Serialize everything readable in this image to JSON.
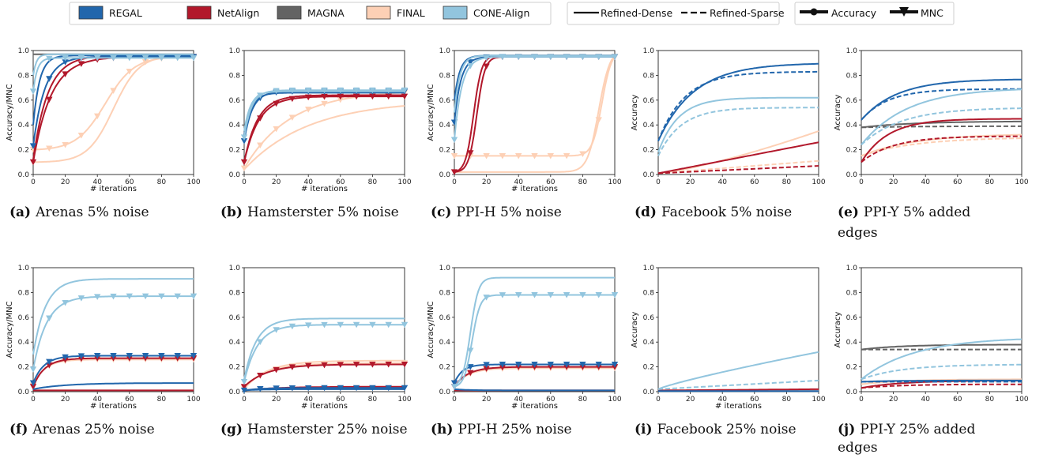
{
  "colors": {
    "REGAL": "#2166ac",
    "NetAlign": "#b2182b",
    "MAGNA": "#636363",
    "FINAL": "#fdd0b5",
    "CONE-Align": "#92c5de"
  },
  "legend": {
    "methods": [
      "REGAL",
      "NetAlign",
      "MAGNA",
      "FINAL",
      "CONE-Align"
    ],
    "styles": [
      "Refined-Dense",
      "Refined-Sparse"
    ],
    "metrics": [
      "Accuracy",
      "MNC"
    ]
  },
  "chart_data": [
    {
      "type": "line",
      "id": "a",
      "letter": "(a)",
      "caption": "Arenas 5% noise",
      "ylabel": "Accuracy/MNC",
      "xlabel": "# iterations",
      "xlim": [
        0,
        100
      ],
      "ylim": [
        0,
        1
      ],
      "xticks": [
        "0",
        "20",
        "40",
        "60",
        "80",
        "100"
      ],
      "yticks": [
        "0.0",
        "0.2",
        "0.4",
        "0.6",
        "0.8",
        "1.0"
      ],
      "series": [
        {
          "method": "REGAL",
          "style": "dense",
          "metric": "acc",
          "y0": 0.4,
          "y1": 0.96,
          "k": 0.25
        },
        {
          "method": "REGAL",
          "style": "dense",
          "metric": "mnc",
          "y0": 0.23,
          "y1": 0.95,
          "k": 0.14
        },
        {
          "method": "NetAlign",
          "style": "dense",
          "metric": "acc",
          "y0": 0.12,
          "y1": 0.96,
          "k": 0.11
        },
        {
          "method": "NetAlign",
          "style": "dense",
          "metric": "mnc",
          "y0": 0.1,
          "y1": 0.95,
          "k": 0.09
        },
        {
          "method": "MAGNA",
          "style": "dense",
          "metric": "acc",
          "y0": 0.97,
          "y1": 0.97,
          "k": 0.1
        },
        {
          "method": "FINAL",
          "style": "dense",
          "metric": "acc",
          "y0": 0.1,
          "y1": 0.96,
          "sig": [
            50,
            8
          ]
        },
        {
          "method": "FINAL",
          "style": "dense",
          "metric": "mnc",
          "y0": 0.2,
          "y1": 0.95,
          "sig": [
            45,
            9
          ]
        },
        {
          "method": "CONE-Align",
          "style": "dense",
          "metric": "acc",
          "y0": 0.8,
          "y1": 0.97,
          "k": 0.5
        },
        {
          "method": "CONE-Align",
          "style": "dense",
          "metric": "mnc",
          "y0": 0.67,
          "y1": 0.94,
          "k": 0.4
        }
      ]
    },
    {
      "type": "line",
      "id": "b",
      "letter": "(b)",
      "caption": "Hamsterster 5% noise",
      "ylabel": "",
      "xlabel": "# iterations",
      "xlim": [
        0,
        100
      ],
      "ylim": [
        0,
        1
      ],
      "xticks": [
        "0",
        "20",
        "40",
        "60",
        "80",
        "100"
      ],
      "yticks": [
        "0.0",
        "0.2",
        "0.4",
        "0.6",
        "0.8",
        "1.0"
      ],
      "series": [
        {
          "method": "REGAL",
          "style": "dense",
          "metric": "acc",
          "y0": 0.32,
          "y1": 0.66,
          "k": 0.22
        },
        {
          "method": "REGAL",
          "style": "dense",
          "metric": "mnc",
          "y0": 0.27,
          "y1": 0.67,
          "k": 0.2
        },
        {
          "method": "NetAlign",
          "style": "dense",
          "metric": "acc",
          "y0": 0.1,
          "y1": 0.64,
          "k": 0.12
        },
        {
          "method": "NetAlign",
          "style": "dense",
          "metric": "mnc",
          "y0": 0.1,
          "y1": 0.63,
          "k": 0.11
        },
        {
          "method": "FINAL",
          "style": "dense",
          "metric": "acc",
          "y0": 0.04,
          "y1": 0.6,
          "k": 0.025
        },
        {
          "method": "FINAL",
          "style": "dense",
          "metric": "mnc",
          "y0": 0.05,
          "y1": 0.68,
          "k": 0.035
        },
        {
          "method": "CONE-Align",
          "style": "dense",
          "metric": "acc",
          "y0": 0.35,
          "y1": 0.67,
          "k": 0.25
        },
        {
          "method": "CONE-Align",
          "style": "dense",
          "metric": "mnc",
          "y0": 0.3,
          "y1": 0.68,
          "k": 0.22
        }
      ]
    },
    {
      "type": "line",
      "id": "c",
      "letter": "(c)",
      "caption": "PPI-H 5% noise",
      "ylabel": "Accuracy/MNC",
      "xlabel": "# iterations",
      "xlim": [
        0,
        100
      ],
      "ylim": [
        0,
        1
      ],
      "xticks": [
        "0",
        "20",
        "40",
        "60",
        "80",
        "100"
      ],
      "yticks": [
        "0.0",
        "0.2",
        "0.4",
        "0.6",
        "0.8",
        "1.0"
      ],
      "series": [
        {
          "method": "REGAL",
          "style": "dense",
          "metric": "acc",
          "y0": 0.6,
          "y1": 0.96,
          "k": 0.3
        },
        {
          "method": "REGAL",
          "style": "dense",
          "metric": "mnc",
          "y0": 0.42,
          "y1": 0.95,
          "k": 0.25
        },
        {
          "method": "NetAlign",
          "style": "dense",
          "metric": "acc",
          "y0": 0.02,
          "y1": 0.96,
          "sig": [
            12,
            2.5
          ]
        },
        {
          "method": "NetAlign",
          "style": "dense",
          "metric": "mnc",
          "y0": 0.02,
          "y1": 0.95,
          "sig": [
            14,
            2.5
          ]
        },
        {
          "method": "FINAL",
          "style": "dense",
          "metric": "acc",
          "y0": 0.02,
          "y1": 0.96,
          "sig": [
            90,
            3.5
          ]
        },
        {
          "method": "FINAL",
          "style": "dense",
          "metric": "mnc",
          "y0": 0.15,
          "y1": 0.95,
          "sig": [
            92,
            3
          ]
        },
        {
          "method": "CONE-Align",
          "style": "dense",
          "metric": "acc",
          "y0": 0.5,
          "y1": 0.96,
          "k": 0.3
        },
        {
          "method": "CONE-Align",
          "style": "dense",
          "metric": "mnc",
          "y0": 0.28,
          "y1": 0.95,
          "k": 0.22
        }
      ]
    },
    {
      "type": "line",
      "id": "d",
      "letter": "(d)",
      "caption": "Facebook 5% noise",
      "ylabel": "Accuracy",
      "xlabel": "",
      "xlim": [
        0,
        100
      ],
      "ylim": [
        0,
        1
      ],
      "xticks": [
        "0",
        "20",
        "40",
        "60",
        "80",
        "100"
      ],
      "yticks": [
        "0.0",
        "0.2",
        "0.4",
        "0.6",
        "0.8",
        "1.0"
      ],
      "series": [
        {
          "method": "REGAL",
          "style": "dense",
          "metric": "acc",
          "y0": 0.27,
          "y1": 0.9,
          "k": 0.045
        },
        {
          "method": "REGAL",
          "style": "sparse",
          "metric": "acc",
          "y0": 0.27,
          "y1": 0.83,
          "k": 0.06
        },
        {
          "method": "NetAlign",
          "style": "dense",
          "metric": "acc",
          "y0": 0.01,
          "y1": 0.26,
          "lin": 1
        },
        {
          "method": "NetAlign",
          "style": "sparse",
          "metric": "acc",
          "y0": 0.01,
          "y1": 0.07,
          "lin": 1
        },
        {
          "method": "FINAL",
          "style": "dense",
          "metric": "acc",
          "y0": 0.01,
          "y1": 0.35,
          "lin": 1.3
        },
        {
          "method": "FINAL",
          "style": "sparse",
          "metric": "acc",
          "y0": 0.01,
          "y1": 0.11,
          "lin": 1
        },
        {
          "method": "CONE-Align",
          "style": "dense",
          "metric": "acc",
          "y0": 0.18,
          "y1": 0.62,
          "k": 0.08
        },
        {
          "method": "CONE-Align",
          "style": "sparse",
          "metric": "acc",
          "y0": 0.15,
          "y1": 0.54,
          "k": 0.07
        }
      ]
    },
    {
      "type": "line",
      "id": "e",
      "letter": "(e)",
      "caption": "PPI-Y 5% added edges",
      "ylabel": "Accuracy",
      "xlabel": "",
      "xlim": [
        0,
        100
      ],
      "ylim": [
        0,
        1
      ],
      "xticks": [
        "0",
        "20",
        "40",
        "60",
        "80",
        "100"
      ],
      "yticks": [
        "0.0",
        "0.2",
        "0.4",
        "0.6",
        "0.8",
        "1.0"
      ],
      "series": [
        {
          "method": "REGAL",
          "style": "dense",
          "metric": "acc",
          "y0": 0.44,
          "y1": 0.77,
          "k": 0.045
        },
        {
          "method": "REGAL",
          "style": "sparse",
          "metric": "acc",
          "y0": 0.44,
          "y1": 0.69,
          "k": 0.06
        },
        {
          "method": "NetAlign",
          "style": "dense",
          "metric": "acc",
          "y0": 0.1,
          "y1": 0.45,
          "k": 0.06
        },
        {
          "method": "NetAlign",
          "style": "sparse",
          "metric": "acc",
          "y0": 0.1,
          "y1": 0.31,
          "k": 0.05
        },
        {
          "method": "MAGNA",
          "style": "dense",
          "metric": "acc",
          "y0": 0.38,
          "y1": 0.43,
          "k": 0.03
        },
        {
          "method": "MAGNA",
          "style": "sparse",
          "metric": "acc",
          "y0": 0.38,
          "y1": 0.39,
          "k": 0.03
        },
        {
          "method": "FINAL",
          "style": "dense",
          "metric": "acc",
          "y0": 0.15,
          "y1": 0.33,
          "k": 0.03
        },
        {
          "method": "FINAL",
          "style": "sparse",
          "metric": "acc",
          "y0": 0.15,
          "y1": 0.3,
          "k": 0.03
        },
        {
          "method": "CONE-Align",
          "style": "dense",
          "metric": "acc",
          "y0": 0.24,
          "y1": 0.7,
          "k": 0.035
        },
        {
          "method": "CONE-Align",
          "style": "sparse",
          "metric": "acc",
          "y0": 0.24,
          "y1": 0.54,
          "k": 0.04
        }
      ]
    },
    {
      "type": "line",
      "id": "f",
      "letter": "(f)",
      "caption": "Arenas 25% noise",
      "ylabel": "Accuracy/MNC",
      "xlabel": "# iterations",
      "xlim": [
        0,
        100
      ],
      "ylim": [
        0,
        1
      ],
      "xticks": [
        "0",
        "20",
        "40",
        "60",
        "80",
        "100"
      ],
      "yticks": [
        "0.0",
        "0.2",
        "0.4",
        "0.6",
        "0.8",
        "1.0"
      ],
      "series": [
        {
          "method": "REGAL",
          "style": "dense",
          "metric": "acc",
          "y0": 0.02,
          "y1": 0.07,
          "k": 0.05
        },
        {
          "method": "REGAL",
          "style": "dense",
          "metric": "mnc",
          "y0": 0.07,
          "y1": 0.29,
          "k": 0.15
        },
        {
          "method": "NetAlign",
          "style": "dense",
          "metric": "acc",
          "y0": 0.01,
          "y1": 0.01,
          "k": 0.1
        },
        {
          "method": "NetAlign",
          "style": "dense",
          "metric": "mnc",
          "y0": 0.04,
          "y1": 0.27,
          "k": 0.14
        },
        {
          "method": "FINAL",
          "style": "dense",
          "metric": "acc",
          "y0": 0.01,
          "y1": 0.01,
          "k": 0.1
        },
        {
          "method": "FINAL",
          "style": "dense",
          "metric": "mnc",
          "y0": 0.05,
          "y1": 0.26,
          "k": 0.14
        },
        {
          "method": "CONE-Align",
          "style": "dense",
          "metric": "acc",
          "y0": 0.3,
          "y1": 0.91,
          "k": 0.13
        },
        {
          "method": "CONE-Align",
          "style": "dense",
          "metric": "mnc",
          "y0": 0.18,
          "y1": 0.77,
          "k": 0.12
        }
      ]
    },
    {
      "type": "line",
      "id": "g",
      "letter": "(g)",
      "caption": "Hamsterster 25% noise",
      "ylabel": "",
      "xlabel": "# iterations",
      "xlim": [
        0,
        100
      ],
      "ylim": [
        0,
        1
      ],
      "xticks": [
        "0",
        "20",
        "40",
        "60",
        "80",
        "100"
      ],
      "yticks": [
        "0.0",
        "0.2",
        "0.4",
        "0.6",
        "0.8",
        "1.0"
      ],
      "series": [
        {
          "method": "REGAL",
          "style": "dense",
          "metric": "acc",
          "y0": 0.01,
          "y1": 0.02,
          "k": 0.1
        },
        {
          "method": "REGAL",
          "style": "dense",
          "metric": "mnc",
          "y0": 0.01,
          "y1": 0.03,
          "k": 0.1
        },
        {
          "method": "NetAlign",
          "style": "dense",
          "metric": "acc",
          "y0": 0.01,
          "y1": 0.04,
          "k": 0.05
        },
        {
          "method": "NetAlign",
          "style": "dense",
          "metric": "mnc",
          "y0": 0.04,
          "y1": 0.22,
          "k": 0.07
        },
        {
          "method": "FINAL",
          "style": "dense",
          "metric": "acc",
          "y0": 0.02,
          "y1": 0.25,
          "k": 0.07
        },
        {
          "method": "FINAL",
          "style": "dense",
          "metric": "mnc",
          "y0": 0.03,
          "y1": 0.23,
          "k": 0.07
        },
        {
          "method": "CONE-Align",
          "style": "dense",
          "metric": "acc",
          "y0": 0.1,
          "y1": 0.59,
          "k": 0.13
        },
        {
          "method": "CONE-Align",
          "style": "dense",
          "metric": "mnc",
          "y0": 0.08,
          "y1": 0.54,
          "k": 0.12
        }
      ]
    },
    {
      "type": "line",
      "id": "h",
      "letter": "(h)",
      "caption": "PPI-H 25% noise",
      "ylabel": "Accuracy/MNC",
      "xlabel": "# iterations",
      "xlim": [
        0,
        100
      ],
      "ylim": [
        0,
        1
      ],
      "xticks": [
        "0",
        "20",
        "40",
        "60",
        "80",
        "100"
      ],
      "yticks": [
        "0.0",
        "0.2",
        "0.4",
        "0.6",
        "0.8",
        "1.0"
      ],
      "series": [
        {
          "method": "REGAL",
          "style": "dense",
          "metric": "acc",
          "y0": 0.02,
          "y1": 0.01,
          "k": 0.1
        },
        {
          "method": "REGAL",
          "style": "dense",
          "metric": "mnc",
          "y0": 0.07,
          "y1": 0.22,
          "k": 0.2
        },
        {
          "method": "NetAlign",
          "style": "dense",
          "metric": "acc",
          "y0": 0.01,
          "y1": 0.01,
          "k": 0.1
        },
        {
          "method": "NetAlign",
          "style": "dense",
          "metric": "mnc",
          "y0": 0.04,
          "y1": 0.2,
          "k": 0.12
        },
        {
          "method": "FINAL",
          "style": "dense",
          "metric": "acc",
          "y0": 0.01,
          "y1": 0.01,
          "k": 0.1
        },
        {
          "method": "FINAL",
          "style": "dense",
          "metric": "mnc",
          "y0": 0.04,
          "y1": 0.19,
          "k": 0.12
        },
        {
          "method": "CONE-Align",
          "style": "dense",
          "metric": "acc",
          "y0": 0.05,
          "y1": 0.92,
          "sig": [
            10,
            2.5
          ]
        },
        {
          "method": "CONE-Align",
          "style": "dense",
          "metric": "mnc",
          "y0": 0.04,
          "y1": 0.78,
          "sig": [
            11,
            2.5
          ]
        }
      ]
    },
    {
      "type": "line",
      "id": "i",
      "letter": "(i)",
      "caption": "Facebook 25% noise",
      "ylabel": "Accuracy",
      "xlabel": "# iterations",
      "xlim": [
        0,
        100
      ],
      "ylim": [
        0,
        1
      ],
      "xticks": [
        "0",
        "20",
        "40",
        "60",
        "80",
        "100"
      ],
      "yticks": [
        "0.0",
        "0.2",
        "0.4",
        "0.6",
        "0.8",
        "1.0"
      ],
      "series": [
        {
          "method": "REGAL",
          "style": "dense",
          "metric": "acc",
          "y0": 0.005,
          "y1": 0.005,
          "k": 0.1
        },
        {
          "method": "NetAlign",
          "style": "dense",
          "metric": "acc",
          "y0": 0.01,
          "y1": 0.02,
          "lin": 1
        },
        {
          "method": "FINAL",
          "style": "dense",
          "metric": "acc",
          "y0": 0.01,
          "y1": 0.015,
          "lin": 1
        },
        {
          "method": "CONE-Align",
          "style": "dense",
          "metric": "acc",
          "y0": 0.02,
          "y1": 0.32,
          "lin": 0.85
        },
        {
          "method": "CONE-Align",
          "style": "sparse",
          "metric": "acc",
          "y0": 0.02,
          "y1": 0.09,
          "lin": 1
        }
      ]
    },
    {
      "type": "line",
      "id": "j",
      "letter": "(j)",
      "caption": "PPI-Y 25% added edges",
      "ylabel": "Accuracy",
      "xlabel": "",
      "xlim": [
        0,
        100
      ],
      "ylim": [
        0,
        1
      ],
      "xticks": [
        "0",
        "20",
        "40",
        "60",
        "80",
        "100"
      ],
      "yticks": [
        "0.0",
        "0.2",
        "0.4",
        "0.6",
        "0.8",
        "1.0"
      ],
      "series": [
        {
          "method": "MAGNA",
          "style": "dense",
          "metric": "acc",
          "y0": 0.34,
          "y1": 0.38,
          "k": 0.04
        },
        {
          "method": "MAGNA",
          "style": "sparse",
          "metric": "acc",
          "y0": 0.34,
          "y1": 0.34,
          "k": 0.04
        },
        {
          "method": "REGAL",
          "style": "dense",
          "metric": "acc",
          "y0": 0.08,
          "y1": 0.09,
          "k": 0.05
        },
        {
          "method": "REGAL",
          "style": "sparse",
          "metric": "acc",
          "y0": 0.08,
          "y1": 0.08,
          "k": 0.05
        },
        {
          "method": "NetAlign",
          "style": "dense",
          "metric": "acc",
          "y0": 0.03,
          "y1": 0.09,
          "k": 0.04
        },
        {
          "method": "NetAlign",
          "style": "sparse",
          "metric": "acc",
          "y0": 0.03,
          "y1": 0.06,
          "k": 0.04
        },
        {
          "method": "FINAL",
          "style": "dense",
          "metric": "acc",
          "y0": 0.06,
          "y1": 0.1,
          "k": 0.04
        },
        {
          "method": "CONE-Align",
          "style": "dense",
          "metric": "acc",
          "y0": 0.1,
          "y1": 0.44,
          "k": 0.03
        },
        {
          "method": "CONE-Align",
          "style": "sparse",
          "metric": "acc",
          "y0": 0.1,
          "y1": 0.22,
          "k": 0.04
        }
      ]
    }
  ]
}
